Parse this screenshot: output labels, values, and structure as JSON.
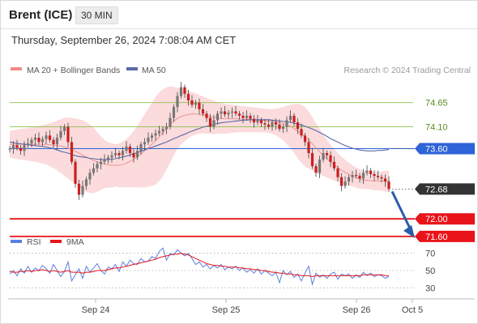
{
  "header": {
    "instrument": "Brent (ICE)",
    "timeframe": "30 MIN",
    "datetime": "Thursday, September 26, 2024 7:08:04 AM CET"
  },
  "legend": {
    "ma20": "MA 20 + Bollinger Bands",
    "ma50": "MA 50",
    "credit": "Research © 2024 Trading Central",
    "rsi": "RSI",
    "rsi_ma": "9MA"
  },
  "colors": {
    "band_fill": "#fbd9da",
    "ma20": "#f08a8a",
    "ma50": "#5a6aa8",
    "green_level": "#8bc34a",
    "pivot": "#2f63d8",
    "support": "#e8141a",
    "last_price": "#333333",
    "arrow": "#2a5da8",
    "rsi": "#5b7fe0",
    "rsi_ma": "#e8141a",
    "up_candle": "#777777",
    "down_candle": "#cc1f1f"
  },
  "chart_data": {
    "type": "candlestick",
    "title": "Brent (ICE)",
    "timeframe": "30 MIN",
    "y_range": [
      71.45,
      75.05
    ],
    "x_ticks": [
      "Sep 24",
      "Sep 25",
      "Sep 26",
      "Oct 5"
    ],
    "last_price": 72.68,
    "levels": [
      {
        "value": 74.65,
        "label": "74.65",
        "kind": "resistance"
      },
      {
        "value": 74.1,
        "label": "74.10",
        "kind": "resistance"
      },
      {
        "value": 73.6,
        "label": "73.60",
        "kind": "pivot"
      },
      {
        "value": 72.68,
        "label": "72.68",
        "kind": "last"
      },
      {
        "value": 72.0,
        "label": "72.00",
        "kind": "support"
      },
      {
        "value": 71.6,
        "label": "71.60",
        "kind": "support"
      }
    ],
    "closes": [
      73.6,
      73.68,
      73.62,
      73.55,
      73.68,
      73.72,
      73.8,
      73.85,
      73.75,
      73.82,
      73.9,
      73.8,
      73.7,
      73.85,
      74.0,
      74.1,
      73.75,
      73.3,
      72.8,
      72.55,
      72.75,
      72.9,
      73.05,
      73.15,
      73.25,
      73.3,
      73.35,
      73.4,
      73.45,
      73.5,
      73.45,
      73.55,
      73.65,
      73.5,
      73.4,
      73.55,
      73.7,
      73.75,
      73.85,
      73.9,
      73.95,
      74.0,
      74.05,
      74.1,
      74.3,
      74.55,
      74.8,
      75.0,
      74.85,
      74.7,
      74.6,
      74.65,
      74.5,
      74.4,
      74.3,
      74.1,
      74.25,
      74.4,
      74.45,
      74.38,
      74.42,
      74.45,
      74.4,
      74.35,
      74.3,
      74.35,
      74.28,
      74.2,
      74.25,
      74.18,
      74.15,
      74.1,
      74.2,
      74.15,
      74.05,
      74.1,
      74.25,
      74.35,
      74.2,
      74.05,
      73.9,
      73.75,
      73.5,
      73.2,
      73.05,
      73.35,
      73.5,
      73.45,
      73.3,
      73.15,
      72.95,
      72.75,
      72.85,
      72.95,
      73.0,
      72.98,
      72.92,
      73.05,
      73.1,
      73.02,
      72.98,
      72.95,
      72.92,
      72.85,
      72.68
    ],
    "ma20": [
      73.7,
      73.7,
      73.7,
      73.7,
      73.7,
      73.7,
      73.7,
      73.7,
      73.7,
      73.7,
      73.7,
      73.69,
      73.68,
      73.67,
      73.66,
      73.64,
      73.61,
      73.58,
      73.54,
      73.5,
      73.45,
      73.41,
      73.37,
      73.33,
      73.3,
      73.27,
      73.25,
      73.23,
      73.22,
      73.22,
      73.22,
      73.24,
      73.27,
      73.31,
      73.36,
      73.42,
      73.48,
      73.55,
      73.62,
      73.7,
      73.78,
      73.87,
      73.96,
      74.06,
      74.15,
      74.23,
      74.29,
      74.33,
      74.36,
      74.38,
      74.39,
      74.39,
      74.38,
      74.37,
      74.35,
      74.33,
      74.31,
      74.3,
      74.29,
      74.28,
      74.28,
      74.28,
      74.28,
      74.28,
      74.27,
      74.27,
      74.26,
      74.26,
      74.25,
      74.25,
      74.24,
      74.23,
      74.22,
      74.21,
      74.19,
      74.17,
      74.14,
      74.11,
      74.06,
      74.0,
      73.94,
      73.87,
      73.8,
      73.71,
      73.62,
      73.53,
      73.45,
      73.37,
      73.3,
      73.23,
      73.17,
      73.11,
      73.06,
      73.02,
      72.98,
      72.94,
      72.91,
      72.89,
      72.88,
      72.87,
      72.86,
      72.86,
      72.86,
      72.86,
      72.86
    ],
    "bb_upper": [
      74.0,
      74.02,
      74.03,
      74.05,
      74.06,
      74.07,
      74.09,
      74.1,
      74.12,
      74.14,
      74.16,
      74.18,
      74.2,
      74.24,
      74.27,
      74.3,
      74.31,
      74.3,
      74.29,
      74.27,
      74.25,
      74.2,
      74.15,
      74.08,
      73.98,
      73.88,
      73.8,
      73.75,
      73.72,
      73.7,
      73.72,
      73.76,
      73.82,
      73.9,
      74.0,
      74.12,
      74.25,
      74.38,
      74.51,
      74.65,
      74.78,
      74.88,
      74.95,
      75.0,
      75.02,
      75.01,
      74.99,
      74.97,
      74.95,
      74.92,
      74.89,
      74.86,
      74.82,
      74.79,
      74.76,
      74.72,
      74.69,
      74.66,
      74.64,
      74.62,
      74.61,
      74.6,
      74.59,
      74.58,
      74.57,
      74.56,
      74.55,
      74.54,
      74.53,
      74.52,
      74.51,
      74.5,
      74.5,
      74.51,
      74.53,
      74.55,
      74.58,
      74.6,
      74.62,
      74.62,
      74.6,
      74.55,
      74.45,
      74.32,
      74.18,
      74.05,
      73.92,
      73.8,
      73.69,
      73.59,
      73.5,
      73.42,
      73.35,
      73.28,
      73.22,
      73.17,
      73.13,
      73.1,
      73.08,
      73.07,
      73.07,
      73.07,
      73.08,
      73.1,
      73.1
    ],
    "bb_lower": [
      73.4,
      73.38,
      73.37,
      73.35,
      73.34,
      73.33,
      73.31,
      73.3,
      73.28,
      73.26,
      73.24,
      73.2,
      73.16,
      73.1,
      73.05,
      72.98,
      72.91,
      72.86,
      72.79,
      72.73,
      72.65,
      72.62,
      72.59,
      72.58,
      72.62,
      72.66,
      72.7,
      72.71,
      72.72,
      72.74,
      72.72,
      72.72,
      72.72,
      72.72,
      72.72,
      72.72,
      72.71,
      72.72,
      72.73,
      72.75,
      72.78,
      72.86,
      72.97,
      73.12,
      73.28,
      73.45,
      73.59,
      73.69,
      73.77,
      73.84,
      73.89,
      73.92,
      73.94,
      73.95,
      73.94,
      73.94,
      73.93,
      73.94,
      73.94,
      73.94,
      73.95,
      73.96,
      73.97,
      73.98,
      73.97,
      73.98,
      73.97,
      73.98,
      73.97,
      73.98,
      73.97,
      73.96,
      73.94,
      73.91,
      73.85,
      73.79,
      73.7,
      73.62,
      73.5,
      73.38,
      73.28,
      73.19,
      73.15,
      73.1,
      73.06,
      73.01,
      72.98,
      72.94,
      72.91,
      72.87,
      72.84,
      72.8,
      72.77,
      72.76,
      72.74,
      72.71,
      72.69,
      72.68,
      72.68,
      72.67,
      72.65,
      72.65,
      72.64,
      72.62,
      72.62
    ],
    "ma50": [
      73.75,
      73.74,
      73.72,
      73.71,
      73.7,
      73.69,
      73.68,
      73.67,
      73.66,
      73.65,
      73.64,
      73.62,
      73.6,
      73.57,
      73.54,
      73.52,
      73.5,
      73.47,
      73.44,
      73.42,
      73.41,
      73.4,
      73.38,
      73.37,
      73.36,
      73.35,
      73.35,
      73.35,
      73.36,
      73.37,
      73.39,
      73.41,
      73.43,
      73.46,
      73.48,
      73.51,
      73.54,
      73.57,
      73.6,
      73.63,
      73.66,
      73.69,
      73.72,
      73.75,
      73.79,
      73.83,
      73.86,
      73.9,
      73.93,
      73.97,
      74.0,
      74.03,
      74.06,
      74.09,
      74.11,
      74.13,
      74.15,
      74.17,
      74.19,
      74.2,
      74.21,
      74.22,
      74.23,
      74.24,
      74.25,
      74.25,
      74.26,
      74.26,
      74.26,
      74.26,
      74.26,
      74.26,
      74.25,
      74.24,
      74.23,
      74.22,
      74.21,
      74.2,
      74.18,
      74.16,
      74.14,
      74.11,
      74.08,
      74.05,
      74.01,
      73.97,
      73.93,
      73.88,
      73.83,
      73.79,
      73.75,
      73.71,
      73.67,
      73.64,
      73.61,
      73.59,
      73.57,
      73.56,
      73.55,
      73.55,
      73.55,
      73.56,
      73.56,
      73.57,
      73.58
    ],
    "forecast_target": 71.6,
    "rsi": {
      "y_range": [
        20,
        80
      ],
      "y_ticks": [
        70,
        50,
        30
      ],
      "series": [
        {
          "name": "RSI"
        },
        {
          "name": "9MA"
        }
      ],
      "rsi_values": [
        46,
        50,
        44,
        52,
        47,
        55,
        48,
        53,
        50,
        56,
        52,
        47,
        57,
        50,
        43,
        49,
        60,
        38,
        45,
        52,
        41,
        55,
        48,
        53,
        58,
        50,
        46,
        54,
        52,
        57,
        49,
        60,
        55,
        62,
        58,
        57,
        64,
        60,
        61,
        66,
        64,
        72,
        76,
        62,
        70,
        68,
        74,
        70,
        67,
        70,
        64,
        57,
        60,
        54,
        57,
        52,
        56,
        53,
        57,
        51,
        54,
        52,
        55,
        50,
        53,
        48,
        51,
        47,
        52,
        46,
        50,
        47,
        44,
        48,
        36,
        50,
        45,
        49,
        42,
        46,
        38,
        47,
        55,
        34,
        47,
        42,
        45,
        41,
        46,
        48,
        40,
        46,
        44,
        46,
        41,
        45,
        42,
        48,
        44,
        47,
        43,
        45,
        44,
        41,
        43
      ],
      "ma_values": [
        49,
        48,
        48,
        49,
        49,
        50,
        49,
        50,
        50,
        51,
        50,
        49,
        50,
        49,
        48,
        49,
        50,
        48,
        48,
        48,
        47,
        48,
        48,
        49,
        50,
        50,
        50,
        51,
        52,
        53,
        53,
        54,
        55,
        56,
        57,
        58,
        59,
        60,
        61,
        62,
        63,
        65,
        66,
        67,
        68,
        69,
        69,
        70,
        69,
        68,
        66,
        64,
        62,
        60,
        58,
        57,
        56,
        56,
        55,
        55,
        54,
        54,
        54,
        53,
        53,
        52,
        52,
        51,
        51,
        50,
        50,
        49,
        48,
        48,
        47,
        47,
        46,
        46,
        45,
        45,
        44,
        44,
        44,
        43,
        44,
        44,
        44,
        44,
        44,
        44,
        44,
        44,
        44,
        44,
        44,
        44,
        44,
        45,
        45,
        45,
        45,
        45,
        45,
        44,
        44
      ]
    }
  }
}
